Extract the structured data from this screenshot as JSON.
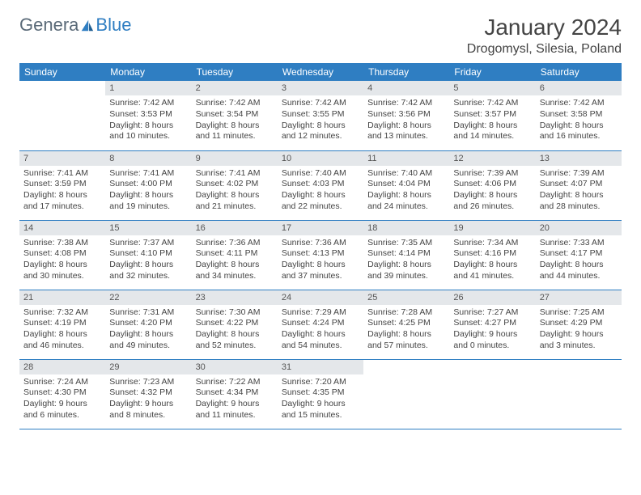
{
  "logo": {
    "left": "Genera",
    "right": "Blue"
  },
  "title": "January 2024",
  "location": "Drogomysl, Silesia, Poland",
  "weekdays": [
    "Sunday",
    "Monday",
    "Tuesday",
    "Wednesday",
    "Thursday",
    "Friday",
    "Saturday"
  ],
  "labels": {
    "sunrise": "Sunrise:",
    "sunset": "Sunset:",
    "daylight": "Daylight:"
  },
  "colors": {
    "accent": "#2f7ec2",
    "header_bg": "#e4e7ea",
    "text": "#444444"
  },
  "weeks": [
    [
      null,
      {
        "d": "1",
        "sr": "7:42 AM",
        "ss": "3:53 PM",
        "dl": "8 hours and 10 minutes."
      },
      {
        "d": "2",
        "sr": "7:42 AM",
        "ss": "3:54 PM",
        "dl": "8 hours and 11 minutes."
      },
      {
        "d": "3",
        "sr": "7:42 AM",
        "ss": "3:55 PM",
        "dl": "8 hours and 12 minutes."
      },
      {
        "d": "4",
        "sr": "7:42 AM",
        "ss": "3:56 PM",
        "dl": "8 hours and 13 minutes."
      },
      {
        "d": "5",
        "sr": "7:42 AM",
        "ss": "3:57 PM",
        "dl": "8 hours and 14 minutes."
      },
      {
        "d": "6",
        "sr": "7:42 AM",
        "ss": "3:58 PM",
        "dl": "8 hours and 16 minutes."
      }
    ],
    [
      {
        "d": "7",
        "sr": "7:41 AM",
        "ss": "3:59 PM",
        "dl": "8 hours and 17 minutes."
      },
      {
        "d": "8",
        "sr": "7:41 AM",
        "ss": "4:00 PM",
        "dl": "8 hours and 19 minutes."
      },
      {
        "d": "9",
        "sr": "7:41 AM",
        "ss": "4:02 PM",
        "dl": "8 hours and 21 minutes."
      },
      {
        "d": "10",
        "sr": "7:40 AM",
        "ss": "4:03 PM",
        "dl": "8 hours and 22 minutes."
      },
      {
        "d": "11",
        "sr": "7:40 AM",
        "ss": "4:04 PM",
        "dl": "8 hours and 24 minutes."
      },
      {
        "d": "12",
        "sr": "7:39 AM",
        "ss": "4:06 PM",
        "dl": "8 hours and 26 minutes."
      },
      {
        "d": "13",
        "sr": "7:39 AM",
        "ss": "4:07 PM",
        "dl": "8 hours and 28 minutes."
      }
    ],
    [
      {
        "d": "14",
        "sr": "7:38 AM",
        "ss": "4:08 PM",
        "dl": "8 hours and 30 minutes."
      },
      {
        "d": "15",
        "sr": "7:37 AM",
        "ss": "4:10 PM",
        "dl": "8 hours and 32 minutes."
      },
      {
        "d": "16",
        "sr": "7:36 AM",
        "ss": "4:11 PM",
        "dl": "8 hours and 34 minutes."
      },
      {
        "d": "17",
        "sr": "7:36 AM",
        "ss": "4:13 PM",
        "dl": "8 hours and 37 minutes."
      },
      {
        "d": "18",
        "sr": "7:35 AM",
        "ss": "4:14 PM",
        "dl": "8 hours and 39 minutes."
      },
      {
        "d": "19",
        "sr": "7:34 AM",
        "ss": "4:16 PM",
        "dl": "8 hours and 41 minutes."
      },
      {
        "d": "20",
        "sr": "7:33 AM",
        "ss": "4:17 PM",
        "dl": "8 hours and 44 minutes."
      }
    ],
    [
      {
        "d": "21",
        "sr": "7:32 AM",
        "ss": "4:19 PM",
        "dl": "8 hours and 46 minutes."
      },
      {
        "d": "22",
        "sr": "7:31 AM",
        "ss": "4:20 PM",
        "dl": "8 hours and 49 minutes."
      },
      {
        "d": "23",
        "sr": "7:30 AM",
        "ss": "4:22 PM",
        "dl": "8 hours and 52 minutes."
      },
      {
        "d": "24",
        "sr": "7:29 AM",
        "ss": "4:24 PM",
        "dl": "8 hours and 54 minutes."
      },
      {
        "d": "25",
        "sr": "7:28 AM",
        "ss": "4:25 PM",
        "dl": "8 hours and 57 minutes."
      },
      {
        "d": "26",
        "sr": "7:27 AM",
        "ss": "4:27 PM",
        "dl": "9 hours and 0 minutes."
      },
      {
        "d": "27",
        "sr": "7:25 AM",
        "ss": "4:29 PM",
        "dl": "9 hours and 3 minutes."
      }
    ],
    [
      {
        "d": "28",
        "sr": "7:24 AM",
        "ss": "4:30 PM",
        "dl": "9 hours and 6 minutes."
      },
      {
        "d": "29",
        "sr": "7:23 AM",
        "ss": "4:32 PM",
        "dl": "9 hours and 8 minutes."
      },
      {
        "d": "30",
        "sr": "7:22 AM",
        "ss": "4:34 PM",
        "dl": "9 hours and 11 minutes."
      },
      {
        "d": "31",
        "sr": "7:20 AM",
        "ss": "4:35 PM",
        "dl": "9 hours and 15 minutes."
      },
      null,
      null,
      null
    ]
  ]
}
